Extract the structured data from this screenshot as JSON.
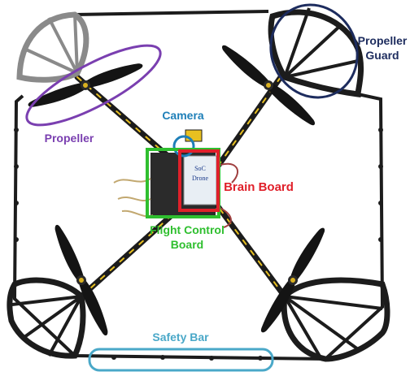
{
  "labels": {
    "camera": "Camera",
    "propeller": "Propeller",
    "propeller_guard_line1": "Propeller",
    "propeller_guard_line2": "Guard",
    "brain_board": "Brain Board",
    "flight_control_line1": "Flight Control",
    "flight_control_line2": "Board",
    "safety_bar": "Safety Bar",
    "board_text_line1": "SoC",
    "board_text_line2": "Drone"
  },
  "colors": {
    "propeller": "#7a3fb0",
    "propeller_guard": "#1d2c5e",
    "camera": "#1e7fb8",
    "brain_board": "#e0202a",
    "flight_control": "#2fbf2f",
    "safety_bar": "#4aa8c8",
    "frame": "#1c1c1c",
    "frame_arm": "#e8c020",
    "guard_gray": "#8a8a8a"
  }
}
